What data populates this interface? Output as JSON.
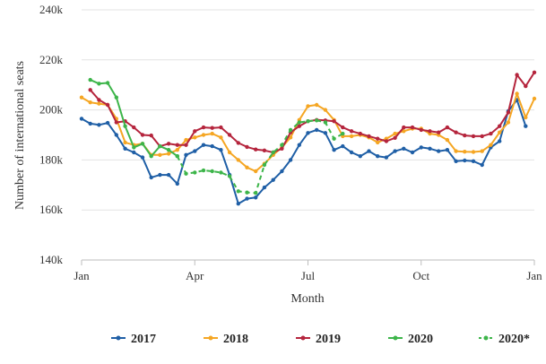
{
  "chart_data": {
    "type": "line",
    "xlabel": "Month",
    "ylabel": "Number of international seats",
    "x_axis": {
      "min": 0,
      "max": 52,
      "ticks": [
        {
          "value": 0,
          "label": "Jan"
        },
        {
          "value": 13,
          "label": "Apr"
        },
        {
          "value": 26,
          "label": "Jul"
        },
        {
          "value": 39,
          "label": "Oct"
        },
        {
          "value": 52,
          "label": "Jan"
        }
      ]
    },
    "y_axis": {
      "min": 140000,
      "max": 240000,
      "ticks": [
        {
          "value": 140000,
          "label": "140k"
        },
        {
          "value": 160000,
          "label": "160k"
        },
        {
          "value": 180000,
          "label": "180k"
        },
        {
          "value": 200000,
          "label": "200k"
        },
        {
          "value": 220000,
          "label": "220k"
        },
        {
          "value": 240000,
          "label": "240k"
        }
      ]
    },
    "grid": "horizontal",
    "legend_position": "bottom",
    "series": [
      {
        "name": "2017",
        "color": "#1f5fa6",
        "dashed": false,
        "x_start": 0,
        "values": [
          196500,
          194500,
          194000,
          194800,
          190000,
          184500,
          183000,
          181000,
          173000,
          174000,
          174000,
          170500,
          182000,
          183500,
          186000,
          185500,
          184000,
          174000,
          162500,
          164500,
          165000,
          169000,
          172000,
          175500,
          180000,
          186000,
          190800,
          192000,
          190800,
          184000,
          185500,
          183000,
          181500,
          183500,
          181500,
          181000,
          183500,
          184500,
          183000,
          185000,
          184500,
          183500,
          184000,
          179500,
          179800,
          179500,
          178000,
          185000,
          187500,
          199500,
          204000,
          193500
        ]
      },
      {
        "name": "2018",
        "color": "#f5a623",
        "dashed": false,
        "x_start": 0,
        "values": [
          205000,
          203000,
          202500,
          202000,
          196500,
          187000,
          186000,
          186500,
          182000,
          182000,
          182500,
          184000,
          188000,
          189000,
          190000,
          190500,
          189000,
          183000,
          180000,
          177000,
          175500,
          178500,
          182000,
          185000,
          189000,
          196000,
          201500,
          202000,
          200000,
          196000,
          189500,
          189500,
          190000,
          189000,
          187000,
          188500,
          190500,
          191500,
          192500,
          192500,
          190500,
          190000,
          188000,
          183500,
          183300,
          183200,
          183500,
          186000,
          191000,
          195000,
          206500,
          197000,
          204500
        ]
      },
      {
        "name": "2019",
        "color": "#b5253d",
        "dashed": false,
        "x_start": 1,
        "values": [
          208000,
          204000,
          202000,
          195000,
          195500,
          193000,
          190000,
          189800,
          185500,
          186500,
          186000,
          186000,
          191500,
          193000,
          192800,
          193000,
          190000,
          186800,
          185200,
          184200,
          183800,
          183000,
          184500,
          191000,
          193500,
          195500,
          196000,
          195800,
          195500,
          193000,
          191500,
          190500,
          189500,
          188500,
          187500,
          188800,
          193000,
          193000,
          192000,
          191500,
          191000,
          193000,
          191000,
          189800,
          189500,
          189500,
          190500,
          193500,
          199000,
          214000,
          209500,
          215000
        ]
      },
      {
        "name": "2020",
        "color": "#3db54a",
        "dashed": false,
        "x_start": 1,
        "values": [
          212000,
          210500,
          210800,
          205000,
          193500,
          185000,
          186500,
          181500,
          185500,
          184000,
          181500
        ]
      },
      {
        "name": "2020*",
        "color": "#3db54a",
        "dashed": true,
        "x_start": 11,
        "values": [
          181500,
          174500,
          175000,
          175800,
          175500,
          175000,
          173500,
          167500,
          167000,
          166800,
          178000,
          183000,
          186000,
          192000,
          195000,
          195500,
          195800,
          195000,
          188500,
          190500
        ]
      }
    ]
  }
}
